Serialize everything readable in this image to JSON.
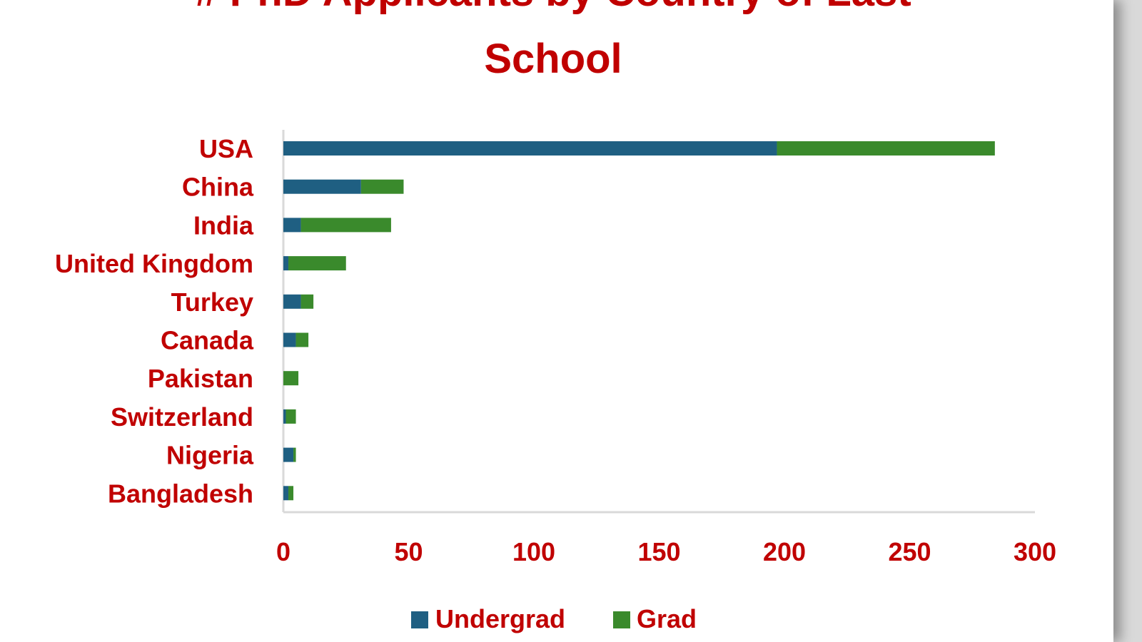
{
  "colors": {
    "title": "#c00000",
    "labels": "#c00000",
    "undergrad": "#1f5f82",
    "grad": "#3a8a2c",
    "axis": "#d9d9d9"
  },
  "chart_data": {
    "type": "bar",
    "orientation": "horizontal",
    "stacked": true,
    "title": "# PhD Applicants by Country of Last School",
    "title_lines": [
      "# PhD Applicants by Country of Last",
      "School"
    ],
    "categories": [
      "USA",
      "China",
      "India",
      "United Kingdom",
      "Turkey",
      "Canada",
      "Pakistan",
      "Switzerland",
      "Nigeria",
      "Bangladesh"
    ],
    "series": [
      {
        "name": "Undergrad",
        "values": [
          197,
          31,
          7,
          2,
          7,
          5,
          0,
          1,
          4,
          2
        ]
      },
      {
        "name": "Grad",
        "values": [
          87,
          17,
          36,
          23,
          5,
          5,
          6,
          4,
          1,
          2
        ]
      }
    ],
    "xlim": [
      0,
      300
    ],
    "xticks": [
      0,
      50,
      100,
      150,
      200,
      250,
      300
    ],
    "xtick_labels": [
      "0",
      "50",
      "100",
      "150",
      "200",
      "250",
      "300"
    ],
    "grid": false,
    "legend": "bottom"
  }
}
